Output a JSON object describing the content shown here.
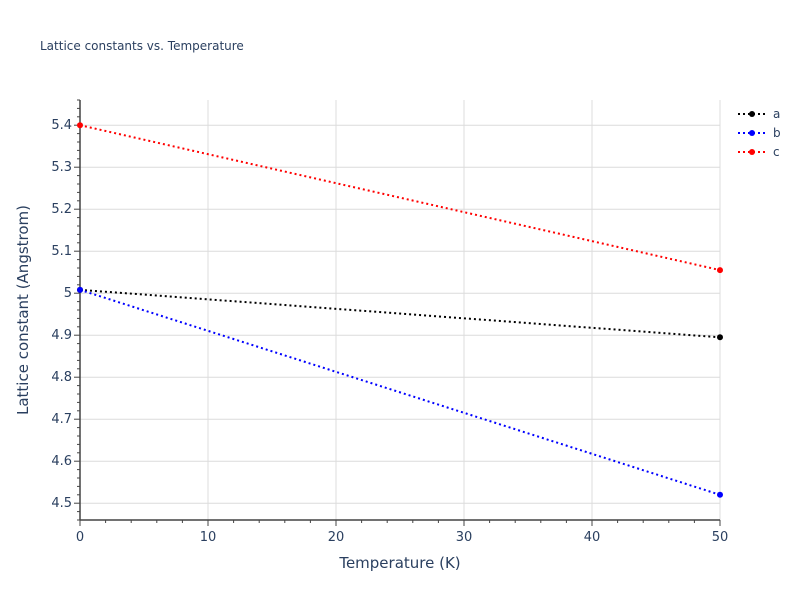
{
  "chart_data": {
    "type": "line",
    "title": "Lattice constants vs. Temperature",
    "xlabel": "Temperature (K)",
    "ylabel": "Lattice constant (Angstrom)",
    "xlim": [
      0,
      50
    ],
    "ylim": [
      4.46,
      5.46
    ],
    "x_ticks": [
      0,
      10,
      20,
      30,
      40,
      50
    ],
    "y_ticks": [
      4.5,
      4.6,
      4.7,
      4.8,
      4.9,
      5,
      5.1,
      5.2,
      5.3,
      5.4
    ],
    "grid": true,
    "legend_position": "top-right",
    "line_style": "dotted",
    "series": [
      {
        "name": "a",
        "color": "#000000",
        "x": [
          0,
          50
        ],
        "y": [
          5.008,
          4.895
        ]
      },
      {
        "name": "b",
        "color": "#0000ff",
        "x": [
          0,
          50
        ],
        "y": [
          5.008,
          4.52
        ]
      },
      {
        "name": "c",
        "color": "#ff0000",
        "x": [
          0,
          50
        ],
        "y": [
          5.4,
          5.055
        ]
      }
    ]
  }
}
